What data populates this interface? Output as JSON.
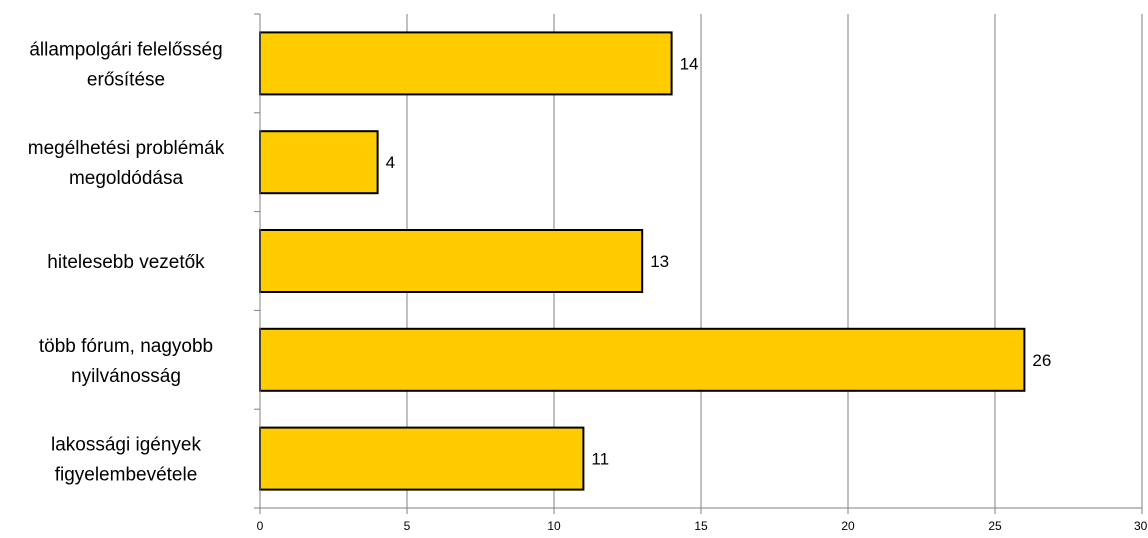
{
  "chart_data": {
    "type": "bar",
    "orientation": "horizontal",
    "categories": [
      [
        "állampolgári felelősség",
        "erősítése"
      ],
      [
        "megélhetési problémák",
        "megoldódása"
      ],
      [
        "hitelesebb vezetők"
      ],
      [
        "több fórum, nagyobb",
        "nyilvánosság"
      ],
      [
        "lakossági igények",
        "figyelembevétele"
      ]
    ],
    "values": [
      14,
      4,
      13,
      26,
      11
    ],
    "data_labels": [
      "14",
      "4",
      "13",
      "26",
      "11"
    ],
    "xlim": [
      0,
      30
    ],
    "x_ticks": [
      0,
      5,
      10,
      15,
      20,
      25,
      30
    ],
    "x_tick_labels": [
      "0",
      "5",
      "10",
      "15",
      "20",
      "25",
      "30"
    ],
    "grid": "vertical",
    "legend": "none",
    "bar_color": "#FFCC00",
    "title": "",
    "xlabel": "",
    "ylabel": ""
  }
}
